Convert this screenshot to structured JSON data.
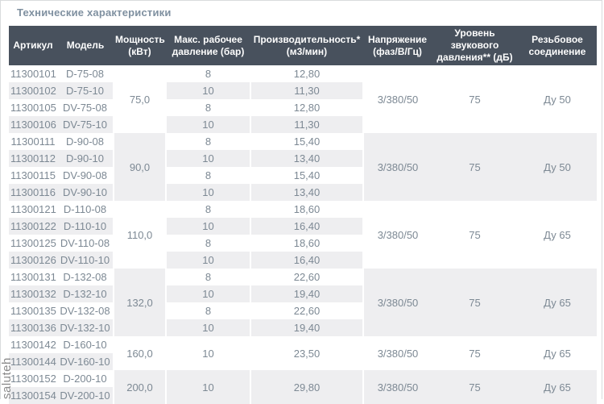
{
  "title": "Технические характеристики",
  "watermark": "saluteh",
  "colors": {
    "header_bg": "#48515d",
    "header_text": "#fdfdfd",
    "stripe": "#eeeef0",
    "body_text": "#7d8994",
    "title_text": "#7f90a0",
    "frame_border": "#d9dbdd"
  },
  "table": {
    "columns": [
      "Артикул",
      "Модель",
      "Мощность (кВт)",
      "Макс. рабочее давление (бар)",
      "Производительность* (м3/мин)",
      "Напряжение (фаз/В/Гц)",
      "Уровень звукового давления** (дБ)",
      "Резьбовое соединение"
    ],
    "groups": [
      {
        "power": "75,0",
        "voltage": "3/380/50",
        "noise": "75",
        "connection": "Ду 50",
        "rows": [
          {
            "article": "11300101",
            "model": "D-75-08",
            "pressure": "8",
            "capacity": "12,80"
          },
          {
            "article": "11300102",
            "model": "D-75-10",
            "pressure": "10",
            "capacity": "11,30"
          },
          {
            "article": "11300105",
            "model": "DV-75-08",
            "pressure": "8",
            "capacity": "12,80"
          },
          {
            "article": "11300106",
            "model": "DV-75-10",
            "pressure": "10",
            "capacity": "11,30"
          }
        ]
      },
      {
        "power": "90,0",
        "voltage": "3/380/50",
        "noise": "75",
        "connection": "Ду 50",
        "rows": [
          {
            "article": "11300111",
            "model": "D-90-08",
            "pressure": "8",
            "capacity": "15,40"
          },
          {
            "article": "11300112",
            "model": "D-90-10",
            "pressure": "10",
            "capacity": "13,40"
          },
          {
            "article": "11300115",
            "model": "DV-90-08",
            "pressure": "8",
            "capacity": "15,40"
          },
          {
            "article": "11300116",
            "model": "DV-90-10",
            "pressure": "10",
            "capacity": "13,40"
          }
        ]
      },
      {
        "power": "110,0",
        "voltage": "3/380/50",
        "noise": "75",
        "connection": "Ду 65",
        "rows": [
          {
            "article": "11300121",
            "model": "D-110-08",
            "pressure": "8",
            "capacity": "18,60"
          },
          {
            "article": "11300122",
            "model": "D-110-10",
            "pressure": "10",
            "capacity": "16,40"
          },
          {
            "article": "11300125",
            "model": "DV-110-08",
            "pressure": "8",
            "capacity": "18,60"
          },
          {
            "article": "11300126",
            "model": "DV-110-10",
            "pressure": "10",
            "capacity": "16,40"
          }
        ]
      },
      {
        "power": "132,0",
        "voltage": "3/380/50",
        "noise": "75",
        "connection": "Ду 65",
        "rows": [
          {
            "article": "11300131",
            "model": "D-132-08",
            "pressure": "8",
            "capacity": "22,60"
          },
          {
            "article": "11300132",
            "model": "D-132-10",
            "pressure": "10",
            "capacity": "19,40"
          },
          {
            "article": "11300135",
            "model": "DV-132-08",
            "pressure": "8",
            "capacity": "22,60"
          },
          {
            "article": "11300136",
            "model": "DV-132-10",
            "pressure": "10",
            "capacity": "19,40"
          }
        ]
      },
      {
        "power": "160,0",
        "pressure": "10",
        "capacity": "23,50",
        "voltage": "3/380/50",
        "noise": "75",
        "connection": "Ду 65",
        "rows": [
          {
            "article": "11300142",
            "model": "D-160-10"
          },
          {
            "article": "11300144",
            "model": "DV-160-10"
          }
        ]
      },
      {
        "power": "200,0",
        "pressure": "10",
        "capacity": "29,80",
        "voltage": "3/380/50",
        "noise": "75",
        "connection": "Ду 65",
        "rows": [
          {
            "article": "11300152",
            "model": "D-200-10"
          },
          {
            "article": "11300154",
            "model": "DV-200-10"
          }
        ]
      }
    ]
  }
}
